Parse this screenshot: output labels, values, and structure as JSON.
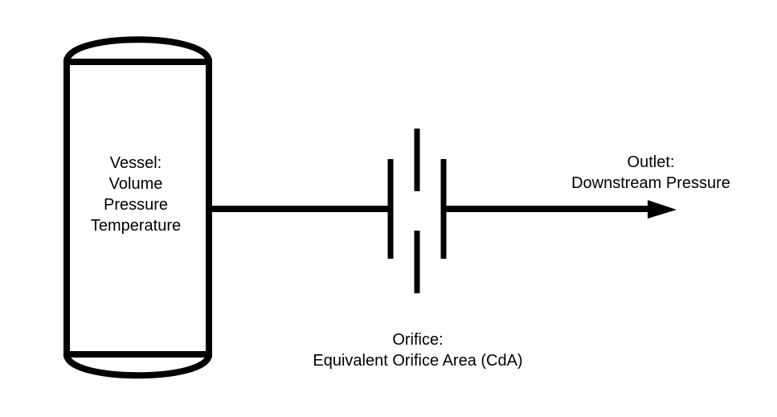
{
  "colors": {
    "stroke": "#000000",
    "background": "#ffffff"
  },
  "vessel": {
    "lines": [
      "Vessel:",
      "Volume",
      "Pressure",
      "Temperature"
    ]
  },
  "outlet": {
    "lines": [
      "Outlet:",
      "Downstream Pressure"
    ]
  },
  "orifice": {
    "lines": [
      "Orifice:",
      "Equivalent Orifice Area (CdA)"
    ]
  }
}
